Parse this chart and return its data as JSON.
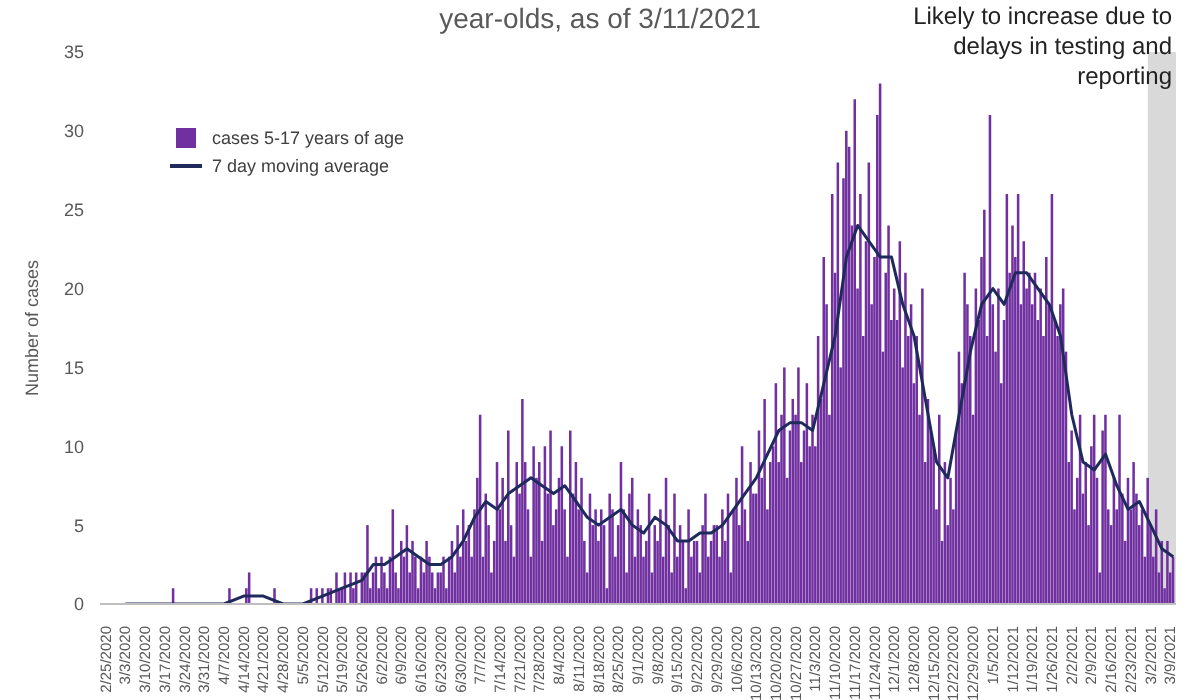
{
  "chart_data": {
    "type": "bar",
    "title": "year-olds, as of 3/11/2021",
    "ylabel": "Number of cases",
    "legend": "top left",
    "marker": "none",
    "ylim": [
      0,
      35
    ],
    "yticks": [
      0,
      5,
      10,
      15,
      20,
      25,
      30,
      35
    ],
    "xlim": [
      "2020-02-23",
      "2021-03-11"
    ],
    "xticks": [
      {
        "value": "2020-02-25",
        "label": "2/25/2020"
      },
      {
        "value": "2020-03-03",
        "label": "3/3/2020"
      },
      {
        "value": "2020-03-10",
        "label": "3/10/2020"
      },
      {
        "value": "2020-03-17",
        "label": "3/17/2020"
      },
      {
        "value": "2020-03-24",
        "label": "3/24/2020"
      },
      {
        "value": "2020-03-31",
        "label": "3/31/2020"
      },
      {
        "value": "2020-04-07",
        "label": "4/7/2020"
      },
      {
        "value": "2020-04-14",
        "label": "4/14/2020"
      },
      {
        "value": "2020-04-21",
        "label": "4/21/2020"
      },
      {
        "value": "2020-04-28",
        "label": "4/28/2020"
      },
      {
        "value": "2020-05-05",
        "label": "5/5/2020"
      },
      {
        "value": "2020-05-12",
        "label": "5/12/2020"
      },
      {
        "value": "2020-05-19",
        "label": "5/19/2020"
      },
      {
        "value": "2020-05-26",
        "label": "5/26/2020"
      },
      {
        "value": "2020-06-02",
        "label": "6/2/2020"
      },
      {
        "value": "2020-06-09",
        "label": "6/9/2020"
      },
      {
        "value": "2020-06-16",
        "label": "6/16/2020"
      },
      {
        "value": "2020-06-23",
        "label": "6/23/2020"
      },
      {
        "value": "2020-06-30",
        "label": "6/30/2020"
      },
      {
        "value": "2020-07-07",
        "label": "7/7/2020"
      },
      {
        "value": "2020-07-14",
        "label": "7/14/2020"
      },
      {
        "value": "2020-07-21",
        "label": "7/21/2020"
      },
      {
        "value": "2020-07-28",
        "label": "7/28/2020"
      },
      {
        "value": "2020-08-04",
        "label": "8/4/2020"
      },
      {
        "value": "2020-08-11",
        "label": "8/11/2020"
      },
      {
        "value": "2020-08-18",
        "label": "8/18/2020"
      },
      {
        "value": "2020-08-25",
        "label": "8/25/2020"
      },
      {
        "value": "2020-09-01",
        "label": "9/1/2020"
      },
      {
        "value": "2020-09-08",
        "label": "9/8/2020"
      },
      {
        "value": "2020-09-15",
        "label": "9/15/2020"
      },
      {
        "value": "2020-09-22",
        "label": "9/22/2020"
      },
      {
        "value": "2020-09-29",
        "label": "9/29/2020"
      },
      {
        "value": "2020-10-06",
        "label": "10/6/2020"
      },
      {
        "value": "2020-10-13",
        "label": "10/13/2020"
      },
      {
        "value": "2020-10-20",
        "label": "10/20/2020"
      },
      {
        "value": "2020-10-27",
        "label": "10/27/2020"
      },
      {
        "value": "2020-11-03",
        "label": "11/3/2020"
      },
      {
        "value": "2020-11-10",
        "label": "11/10/2020"
      },
      {
        "value": "2020-11-17",
        "label": "11/17/2020"
      },
      {
        "value": "2020-11-24",
        "label": "11/24/2020"
      },
      {
        "value": "2020-12-01",
        "label": "12/1/2020"
      },
      {
        "value": "2020-12-08",
        "label": "12/8/2020"
      },
      {
        "value": "2020-12-15",
        "label": "12/15/2020"
      },
      {
        "value": "2020-12-22",
        "label": "12/22/2020"
      },
      {
        "value": "2020-12-29",
        "label": "12/29/2020"
      },
      {
        "value": "2021-01-05",
        "label": "1/5/2021"
      },
      {
        "value": "2021-01-12",
        "label": "1/12/2021"
      },
      {
        "value": "2021-01-19",
        "label": "1/19/2021"
      },
      {
        "value": "2021-01-26",
        "label": "1/26/2021"
      },
      {
        "value": "2021-02-02",
        "label": "2/2/2021"
      },
      {
        "value": "2021-02-09",
        "label": "2/9/2021"
      },
      {
        "value": "2021-02-16",
        "label": "2/16/2021"
      },
      {
        "value": "2021-02-23",
        "label": "2/23/2021"
      },
      {
        "value": "2021-03-02",
        "label": "3/2/2021"
      },
      {
        "value": "2021-03-09",
        "label": "3/9/2021"
      }
    ],
    "bands": [
      {
        "axis": "x",
        "from": "2021-03-01",
        "to": "2021-03-11",
        "label": "Likely to increase due to delays in testing and reporting",
        "color": "#d9d9d9"
      }
    ],
    "x": [
      "2020-02-25",
      "2020-02-26",
      "2020-02-27",
      "2020-02-28",
      "2020-02-29",
      "2020-03-01",
      "2020-03-02",
      "2020-03-03",
      "2020-03-04",
      "2020-03-05",
      "2020-03-06",
      "2020-03-07",
      "2020-03-08",
      "2020-03-09",
      "2020-03-10",
      "2020-03-11",
      "2020-03-12",
      "2020-03-13",
      "2020-03-14",
      "2020-03-15",
      "2020-03-16",
      "2020-03-17",
      "2020-03-18",
      "2020-03-19",
      "2020-03-20",
      "2020-03-21",
      "2020-03-22",
      "2020-03-23",
      "2020-03-24",
      "2020-03-25",
      "2020-03-26",
      "2020-03-27",
      "2020-03-28",
      "2020-03-29",
      "2020-03-30",
      "2020-03-31",
      "2020-04-01",
      "2020-04-02",
      "2020-04-03",
      "2020-04-04",
      "2020-04-05",
      "2020-04-06",
      "2020-04-07",
      "2020-04-08",
      "2020-04-09",
      "2020-04-10",
      "2020-04-11",
      "2020-04-12",
      "2020-04-13",
      "2020-04-14",
      "2020-04-15",
      "2020-04-16",
      "2020-04-17",
      "2020-04-18",
      "2020-04-19",
      "2020-04-20",
      "2020-04-21",
      "2020-04-22",
      "2020-04-23",
      "2020-04-24",
      "2020-04-25",
      "2020-04-26",
      "2020-04-27",
      "2020-04-28",
      "2020-04-29",
      "2020-04-30",
      "2020-05-01",
      "2020-05-02",
      "2020-05-03",
      "2020-05-04",
      "2020-05-05",
      "2020-05-06",
      "2020-05-07",
      "2020-05-08",
      "2020-05-09",
      "2020-05-10",
      "2020-05-11",
      "2020-05-12",
      "2020-05-13",
      "2020-05-14",
      "2020-05-15",
      "2020-05-16",
      "2020-05-17",
      "2020-05-18",
      "2020-05-19",
      "2020-05-20",
      "2020-05-21",
      "2020-05-22",
      "2020-05-23",
      "2020-05-24",
      "2020-05-25",
      "2020-05-26",
      "2020-05-27",
      "2020-05-28",
      "2020-05-29",
      "2020-05-30",
      "2020-05-31",
      "2020-06-01",
      "2020-06-02",
      "2020-06-03",
      "2020-06-04",
      "2020-06-05",
      "2020-06-06",
      "2020-06-07",
      "2020-06-08",
      "2020-06-09",
      "2020-06-10",
      "2020-06-11",
      "2020-06-12",
      "2020-06-13",
      "2020-06-14",
      "2020-06-15",
      "2020-06-16",
      "2020-06-17",
      "2020-06-18",
      "2020-06-19",
      "2020-06-20",
      "2020-06-21",
      "2020-06-22",
      "2020-06-23",
      "2020-06-24",
      "2020-06-25",
      "2020-06-26",
      "2020-06-27",
      "2020-06-28",
      "2020-06-29",
      "2020-06-30",
      "2020-07-01",
      "2020-07-02",
      "2020-07-03",
      "2020-07-04",
      "2020-07-05",
      "2020-07-06",
      "2020-07-07",
      "2020-07-08",
      "2020-07-09",
      "2020-07-10",
      "2020-07-11",
      "2020-07-12",
      "2020-07-13",
      "2020-07-14",
      "2020-07-15",
      "2020-07-16",
      "2020-07-17",
      "2020-07-18",
      "2020-07-19",
      "2020-07-20",
      "2020-07-21",
      "2020-07-22",
      "2020-07-23",
      "2020-07-24",
      "2020-07-25",
      "2020-07-26",
      "2020-07-27",
      "2020-07-28",
      "2020-07-29",
      "2020-07-30",
      "2020-07-31",
      "2020-08-01",
      "2020-08-02",
      "2020-08-03",
      "2020-08-04",
      "2020-08-05",
      "2020-08-06",
      "2020-08-07",
      "2020-08-08",
      "2020-08-09",
      "2020-08-10",
      "2020-08-11",
      "2020-08-12",
      "2020-08-13",
      "2020-08-14",
      "2020-08-15",
      "2020-08-16",
      "2020-08-17",
      "2020-08-18",
      "2020-08-19",
      "2020-08-20",
      "2020-08-21",
      "2020-08-22",
      "2020-08-23",
      "2020-08-24",
      "2020-08-25",
      "2020-08-26",
      "2020-08-27",
      "2020-08-28",
      "2020-08-29",
      "2020-08-30",
      "2020-08-31",
      "2020-09-01",
      "2020-09-02",
      "2020-09-03",
      "2020-09-04",
      "2020-09-05",
      "2020-09-06",
      "2020-09-07",
      "2020-09-08",
      "2020-09-09",
      "2020-09-10",
      "2020-09-11",
      "2020-09-12",
      "2020-09-13",
      "2020-09-14",
      "2020-09-15",
      "2020-09-16",
      "2020-09-17",
      "2020-09-18",
      "2020-09-19",
      "2020-09-20",
      "2020-09-21",
      "2020-09-22",
      "2020-09-23",
      "2020-09-24",
      "2020-09-25",
      "2020-09-26",
      "2020-09-27",
      "2020-09-28",
      "2020-09-29",
      "2020-09-30",
      "2020-10-01",
      "2020-10-02",
      "2020-10-03",
      "2020-10-04",
      "2020-10-05",
      "2020-10-06",
      "2020-10-07",
      "2020-10-08",
      "2020-10-09",
      "2020-10-10",
      "2020-10-11",
      "2020-10-12",
      "2020-10-13",
      "2020-10-14",
      "2020-10-15",
      "2020-10-16",
      "2020-10-17",
      "2020-10-18",
      "2020-10-19",
      "2020-10-20",
      "2020-10-21",
      "2020-10-22",
      "2020-10-23",
      "2020-10-24",
      "2020-10-25",
      "2020-10-26",
      "2020-10-27",
      "2020-10-28",
      "2020-10-29",
      "2020-10-30",
      "2020-10-31",
      "2020-11-01",
      "2020-11-02",
      "2020-11-03",
      "2020-11-04",
      "2020-11-05",
      "2020-11-06",
      "2020-11-07",
      "2020-11-08",
      "2020-11-09",
      "2020-11-10",
      "2020-11-11",
      "2020-11-12",
      "2020-11-13",
      "2020-11-14",
      "2020-11-15",
      "2020-11-16",
      "2020-11-17",
      "2020-11-18",
      "2020-11-19",
      "2020-11-20",
      "2020-11-21",
      "2020-11-22",
      "2020-11-23",
      "2020-11-24",
      "2020-11-25",
      "2020-11-26",
      "2020-11-27",
      "2020-11-28",
      "2020-11-29",
      "2020-11-30",
      "2020-12-01",
      "2020-12-02",
      "2020-12-03",
      "2020-12-04",
      "2020-12-05",
      "2020-12-06",
      "2020-12-07",
      "2020-12-08",
      "2020-12-09",
      "2020-12-10",
      "2020-12-11",
      "2020-12-12",
      "2020-12-13",
      "2020-12-14",
      "2020-12-15",
      "2020-12-16",
      "2020-12-17",
      "2020-12-18",
      "2020-12-19",
      "2020-12-20",
      "2020-12-21",
      "2020-12-22",
      "2020-12-23",
      "2020-12-24",
      "2020-12-25",
      "2020-12-26",
      "2020-12-27",
      "2020-12-28",
      "2020-12-29",
      "2020-12-30",
      "2020-12-31",
      "2021-01-01",
      "2021-01-02",
      "2021-01-03",
      "2021-01-04",
      "2021-01-05",
      "2021-01-06",
      "2021-01-07",
      "2021-01-08",
      "2021-01-09",
      "2021-01-10",
      "2021-01-11",
      "2021-01-12",
      "2021-01-13",
      "2021-01-14",
      "2021-01-15",
      "2021-01-16",
      "2021-01-17",
      "2021-01-18",
      "2021-01-19",
      "2021-01-20",
      "2021-01-21",
      "2021-01-22",
      "2021-01-23",
      "2021-01-24",
      "2021-01-25",
      "2021-01-26",
      "2021-01-27",
      "2021-01-28",
      "2021-01-29",
      "2021-01-30",
      "2021-01-31",
      "2021-02-01",
      "2021-02-02",
      "2021-02-03",
      "2021-02-04",
      "2021-02-05",
      "2021-02-06",
      "2021-02-07",
      "2021-02-08",
      "2021-02-09",
      "2021-02-10",
      "2021-02-11",
      "2021-02-12",
      "2021-02-13",
      "2021-02-14",
      "2021-02-15",
      "2021-02-16",
      "2021-02-17",
      "2021-02-18",
      "2021-02-19",
      "2021-02-20",
      "2021-02-21",
      "2021-02-22",
      "2021-02-23",
      "2021-02-24",
      "2021-02-25",
      "2021-02-26",
      "2021-02-27",
      "2021-02-28",
      "2021-03-01",
      "2021-03-02",
      "2021-03-03",
      "2021-03-04",
      "2021-03-05",
      "2021-03-06",
      "2021-03-07",
      "2021-03-08",
      "2021-03-09",
      "2021-03-10"
    ],
    "series": [
      {
        "name": "cases 5-17 years of age",
        "color": "#7030a0",
        "values": [
          0,
          0,
          0,
          0,
          0,
          0,
          0,
          0,
          0,
          0,
          0,
          0,
          0,
          0,
          0,
          0,
          0,
          0,
          0,
          0,
          0,
          0,
          0,
          0,
          1,
          0,
          0,
          0,
          0,
          0,
          0,
          0,
          0,
          0,
          0,
          0,
          0,
          0,
          0,
          0,
          0,
          0,
          0,
          0,
          1,
          0,
          0,
          0,
          0,
          0,
          1,
          2,
          0,
          0,
          0,
          0,
          0,
          0,
          0,
          0,
          1,
          0,
          0,
          0,
          0,
          0,
          0,
          0,
          0,
          0,
          0,
          0,
          0,
          1,
          0,
          1,
          0,
          1,
          0,
          1,
          1,
          0,
          2,
          1,
          1,
          2,
          0,
          2,
          1,
          2,
          0,
          2,
          2,
          5,
          1,
          2,
          3,
          1,
          3,
          2,
          1,
          3,
          6,
          2,
          1,
          4,
          3,
          5,
          2,
          4,
          3,
          1,
          3,
          2,
          4,
          3,
          2,
          1,
          2,
          2,
          3,
          1,
          3,
          4,
          2,
          5,
          3,
          6,
          4,
          5,
          3,
          6,
          8,
          12,
          3,
          7,
          5,
          2,
          4,
          9,
          6,
          8,
          4,
          11,
          5,
          3,
          9,
          7,
          13,
          9,
          6,
          3,
          10,
          8,
          9,
          4,
          10,
          7,
          11,
          5,
          6,
          8,
          10,
          6,
          3,
          11,
          7,
          9,
          6,
          8,
          4,
          2,
          7,
          5,
          6,
          4,
          6,
          5,
          1,
          7,
          6,
          3,
          5,
          9,
          6,
          2,
          7,
          8,
          3,
          6,
          5,
          3,
          4,
          7,
          2,
          5,
          4,
          6,
          3,
          8,
          5,
          2,
          7,
          3,
          5,
          4,
          1,
          6,
          3,
          4,
          4,
          2,
          5,
          7,
          3,
          4,
          5,
          5,
          3,
          6,
          4,
          7,
          2,
          6,
          8,
          5,
          10,
          6,
          4,
          9,
          7,
          7,
          11,
          8,
          13,
          6,
          9,
          10,
          14,
          9,
          12,
          15,
          8,
          11,
          13,
          12,
          15,
          9,
          11,
          14,
          10,
          12,
          10,
          17,
          13,
          22,
          19,
          12,
          26,
          21,
          28,
          15,
          27,
          30,
          29,
          24,
          32,
          20,
          26,
          17,
          23,
          28,
          19,
          22,
          31,
          33,
          16,
          21,
          24,
          18,
          20,
          18,
          23,
          15,
          21,
          17,
          19,
          14,
          17,
          12,
          20,
          9,
          13,
          11,
          10,
          6,
          12,
          4,
          9,
          5,
          8,
          6,
          11,
          16,
          14,
          21,
          19,
          17,
          12,
          20,
          18,
          22,
          25,
          17,
          31,
          19,
          16,
          20,
          14,
          18,
          26,
          21,
          24,
          22,
          26,
          19,
          23,
          20,
          21,
          19,
          21,
          18,
          20,
          17,
          22,
          19,
          26,
          18,
          17,
          19,
          20,
          16,
          9,
          11,
          6,
          8,
          12,
          7,
          9,
          5,
          10,
          12,
          8,
          2,
          11,
          12,
          6,
          5,
          8,
          6,
          12,
          7,
          4,
          8,
          6,
          9,
          7,
          5,
          6,
          3,
          8,
          5,
          3,
          6,
          2,
          4,
          1,
          4,
          2,
          3
        ]
      },
      {
        "name": "7 day moving average",
        "type": "line",
        "color": "#1f2a5c",
        "x": [
          "2020-03-03",
          "2020-03-17",
          "2020-03-24",
          "2020-04-07",
          "2020-04-14",
          "2020-04-21",
          "2020-04-28",
          "2020-05-05",
          "2020-05-12",
          "2020-05-19",
          "2020-05-26",
          "2020-05-30",
          "2020-06-03",
          "2020-06-07",
          "2020-06-11",
          "2020-06-15",
          "2020-06-19",
          "2020-06-23",
          "2020-06-27",
          "2020-07-01",
          "2020-07-05",
          "2020-07-09",
          "2020-07-13",
          "2020-07-17",
          "2020-07-21",
          "2020-07-25",
          "2020-07-29",
          "2020-08-02",
          "2020-08-06",
          "2020-08-10",
          "2020-08-14",
          "2020-08-18",
          "2020-08-22",
          "2020-08-26",
          "2020-08-30",
          "2020-09-03",
          "2020-09-07",
          "2020-09-11",
          "2020-09-15",
          "2020-09-19",
          "2020-09-23",
          "2020-09-27",
          "2020-10-01",
          "2020-10-05",
          "2020-10-09",
          "2020-10-13",
          "2020-10-17",
          "2020-10-21",
          "2020-10-25",
          "2020-10-29",
          "2020-11-02",
          "2020-11-06",
          "2020-11-10",
          "2020-11-14",
          "2020-11-18",
          "2020-11-22",
          "2020-11-26",
          "2020-11-30",
          "2020-12-04",
          "2020-12-08",
          "2020-12-12",
          "2020-12-16",
          "2020-12-20",
          "2020-12-24",
          "2020-12-28",
          "2021-01-01",
          "2021-01-05",
          "2021-01-09",
          "2021-01-13",
          "2021-01-17",
          "2021-01-21",
          "2021-01-25",
          "2021-01-29",
          "2021-02-02",
          "2021-02-06",
          "2021-02-10",
          "2021-02-14",
          "2021-02-18",
          "2021-02-22",
          "2021-02-26",
          "2021-03-02",
          "2021-03-06",
          "2021-03-10"
        ],
        "values": [
          0,
          0,
          0,
          0,
          0.5,
          0.5,
          0,
          0,
          0.5,
          1,
          1.5,
          2.5,
          2.5,
          3,
          3.5,
          3,
          2.5,
          2.5,
          3,
          4,
          5.5,
          6.5,
          6,
          7,
          7.5,
          8,
          7.5,
          7,
          7.5,
          6.5,
          5.5,
          5,
          5.5,
          6,
          5,
          4.5,
          5.5,
          5,
          4,
          4,
          4.5,
          4.5,
          5,
          6,
          7,
          8,
          9.5,
          11,
          11.5,
          11.5,
          11,
          14,
          17,
          22,
          24,
          23,
          22,
          22,
          19,
          17,
          13,
          9,
          8,
          12,
          16,
          19,
          20,
          19,
          21,
          21,
          20,
          19,
          17,
          12,
          9,
          8.5,
          9.5,
          7.5,
          6,
          6.5,
          5,
          3.5,
          3
        ]
      }
    ]
  }
}
